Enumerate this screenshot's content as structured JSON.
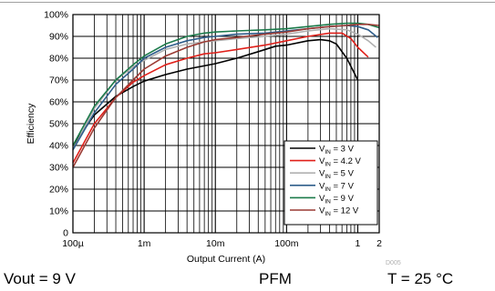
{
  "chart_data": {
    "type": "line",
    "xlabel": "Output Current (A)",
    "ylabel": "Efficiency",
    "xscale": "log",
    "xlim": [
      0.0001,
      2
    ],
    "ylim": [
      0,
      100
    ],
    "grid": true,
    "legend_position": "bottom-right",
    "x_ticks": [
      {
        "value": 0.0001,
        "label": "100µ"
      },
      {
        "value": 0.001,
        "label": "1m"
      },
      {
        "value": 0.01,
        "label": "10m"
      },
      {
        "value": 0.1,
        "label": "100m"
      },
      {
        "value": 1,
        "label": "1"
      },
      {
        "value": 2,
        "label": "2"
      }
    ],
    "y_ticks": [
      {
        "value": 0,
        "label": "0"
      },
      {
        "value": 10,
        "label": "10%"
      },
      {
        "value": 20,
        "label": "20%"
      },
      {
        "value": 30,
        "label": "30%"
      },
      {
        "value": 40,
        "label": "40%"
      },
      {
        "value": 50,
        "label": "50%"
      },
      {
        "value": 60,
        "label": "60%"
      },
      {
        "value": 70,
        "label": "70%"
      },
      {
        "value": 80,
        "label": "80%"
      },
      {
        "value": 90,
        "label": "90%"
      },
      {
        "value": 100,
        "label": "100%"
      }
    ],
    "watermark": "D005",
    "series": [
      {
        "name_main": "V",
        "name_sub": "IN",
        "name_rest": " = 3 V",
        "color": "#000000",
        "points": [
          [
            0.0001,
            40
          ],
          [
            0.0002,
            54
          ],
          [
            0.0004,
            62.5
          ],
          [
            0.0007,
            67
          ],
          [
            0.001,
            69.5
          ],
          [
            0.002,
            72.5
          ],
          [
            0.004,
            75
          ],
          [
            0.007,
            76.5
          ],
          [
            0.01,
            77.5
          ],
          [
            0.02,
            80
          ],
          [
            0.04,
            83
          ],
          [
            0.07,
            85.5
          ],
          [
            0.1,
            86
          ],
          [
            0.2,
            88
          ],
          [
            0.3,
            88.5
          ],
          [
            0.4,
            88
          ],
          [
            0.5,
            86.5
          ],
          [
            0.7,
            80
          ],
          [
            1,
            70
          ]
        ]
      },
      {
        "name_main": "V",
        "name_sub": "IN",
        "name_rest": " = 4.2 V",
        "color": "#e0201a",
        "points": [
          [
            0.0001,
            32
          ],
          [
            0.0002,
            50
          ],
          [
            0.0004,
            62
          ],
          [
            0.0007,
            69
          ],
          [
            0.001,
            72
          ],
          [
            0.002,
            77
          ],
          [
            0.004,
            80
          ],
          [
            0.007,
            82
          ],
          [
            0.01,
            82.5
          ],
          [
            0.02,
            84
          ],
          [
            0.05,
            86
          ],
          [
            0.1,
            88
          ],
          [
            0.2,
            90
          ],
          [
            0.4,
            91.5
          ],
          [
            0.6,
            91.5
          ],
          [
            0.8,
            89
          ],
          [
            1,
            85
          ],
          [
            1.4,
            80.5
          ]
        ]
      },
      {
        "name_main": "V",
        "name_sub": "IN",
        "name_rest": " = 5 V",
        "color": "#b0b0b0",
        "points": [
          [
            0.0001,
            38
          ],
          [
            0.0002,
            57
          ],
          [
            0.0004,
            70
          ],
          [
            0.0007,
            76
          ],
          [
            0.001,
            79
          ],
          [
            0.002,
            84
          ],
          [
            0.004,
            86.5
          ],
          [
            0.007,
            87.5
          ],
          [
            0.01,
            88
          ],
          [
            0.02,
            89
          ],
          [
            0.05,
            90
          ],
          [
            0.1,
            91
          ],
          [
            0.2,
            92.5
          ],
          [
            0.4,
            93.5
          ],
          [
            0.7,
            93
          ],
          [
            1,
            91
          ],
          [
            1.4,
            88
          ],
          [
            1.8,
            85
          ]
        ]
      },
      {
        "name_main": "V",
        "name_sub": "IN",
        "name_rest": " = 7 V",
        "color": "#2e5d8a",
        "points": [
          [
            0.0001,
            38
          ],
          [
            0.0002,
            55
          ],
          [
            0.0004,
            68
          ],
          [
            0.0007,
            75
          ],
          [
            0.001,
            80
          ],
          [
            0.002,
            85
          ],
          [
            0.004,
            88
          ],
          [
            0.007,
            89.5
          ],
          [
            0.01,
            90
          ],
          [
            0.02,
            91
          ],
          [
            0.05,
            91.5
          ],
          [
            0.1,
            92.5
          ],
          [
            0.2,
            93.5
          ],
          [
            0.4,
            94.5
          ],
          [
            0.7,
            95
          ],
          [
            1,
            94.5
          ],
          [
            1.4,
            93
          ],
          [
            1.9,
            89.5
          ]
        ]
      },
      {
        "name_main": "V",
        "name_sub": "IN",
        "name_rest": " = 9 V",
        "color": "#1b7a4a",
        "points": [
          [
            0.0001,
            40
          ],
          [
            0.0002,
            58
          ],
          [
            0.0004,
            70
          ],
          [
            0.0007,
            77
          ],
          [
            0.001,
            81
          ],
          [
            0.002,
            86.5
          ],
          [
            0.004,
            90
          ],
          [
            0.007,
            91.5
          ],
          [
            0.01,
            92
          ],
          [
            0.02,
            92.5
          ],
          [
            0.05,
            93
          ],
          [
            0.1,
            93.5
          ],
          [
            0.2,
            94.5
          ],
          [
            0.4,
            95.5
          ],
          [
            0.7,
            96
          ],
          [
            1,
            96
          ],
          [
            1.4,
            95.5
          ],
          [
            2,
            94
          ]
        ]
      },
      {
        "name_main": "V",
        "name_sub": "IN",
        "name_rest": " = 12 V",
        "color": "#9a3a33",
        "points": [
          [
            0.0001,
            30
          ],
          [
            0.0002,
            48
          ],
          [
            0.0004,
            62
          ],
          [
            0.0007,
            70
          ],
          [
            0.001,
            75
          ],
          [
            0.002,
            81
          ],
          [
            0.004,
            85
          ],
          [
            0.007,
            87.5
          ],
          [
            0.01,
            88.5
          ],
          [
            0.02,
            89.5
          ],
          [
            0.05,
            91
          ],
          [
            0.1,
            92
          ],
          [
            0.2,
            93.5
          ],
          [
            0.4,
            94.5
          ],
          [
            0.7,
            95
          ],
          [
            1,
            95.5
          ],
          [
            1.4,
            95.5
          ],
          [
            2,
            95
          ]
        ]
      }
    ]
  },
  "conditions": {
    "vout": "Vout = 9 V",
    "mode": "PFM",
    "temperature": "T = 25 °C"
  }
}
